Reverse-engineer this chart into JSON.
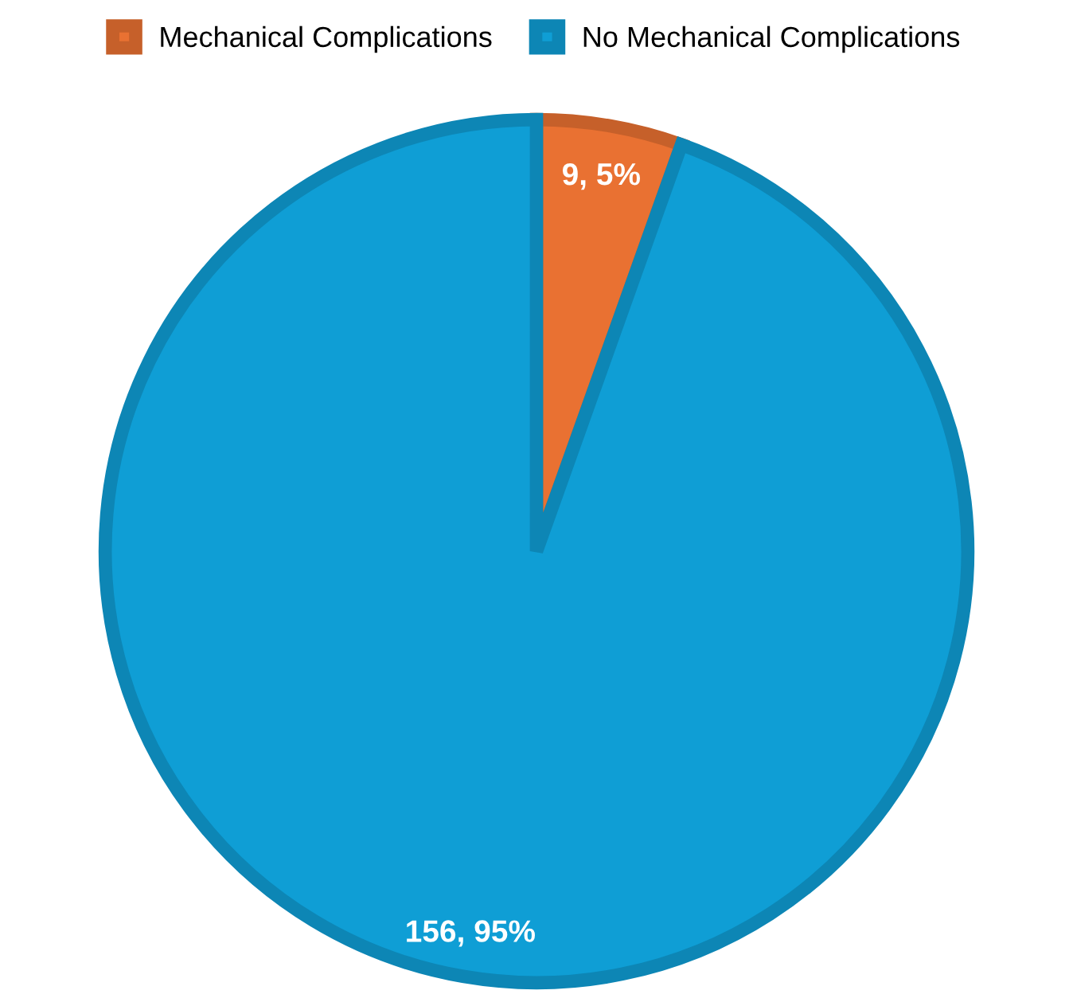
{
  "chart_data": {
    "type": "pie",
    "categories": [
      "Mechanical Complications",
      "No Mechanical Complications"
    ],
    "values": [
      9,
      156
    ],
    "colors": [
      "#e97132",
      "#0f9ed5"
    ],
    "value_labels": [
      "9, 5%",
      "156, 95%"
    ],
    "legend": "top"
  }
}
